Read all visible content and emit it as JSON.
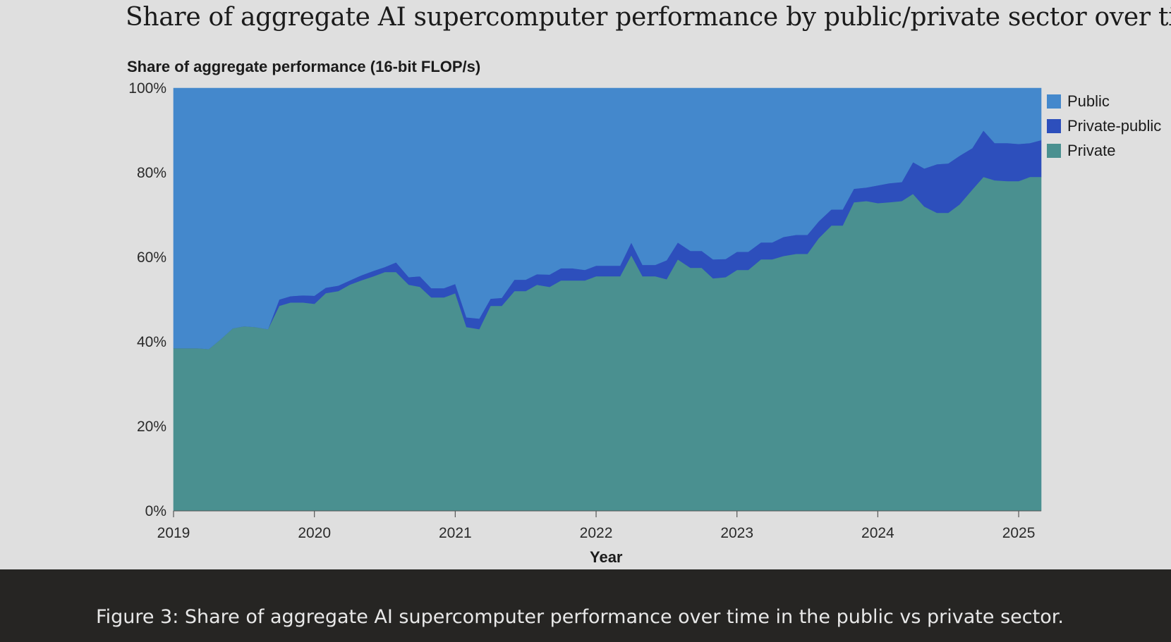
{
  "title": "Share of aggregate AI supercomputer performance by public/private sector over time",
  "caption": "Figure 3: Share of aggregate AI supercomputer performance over time in the public vs private sector.",
  "chart_data": {
    "type": "area",
    "stacked": true,
    "normalized": true,
    "title": "Share of aggregate AI supercomputer performance by public/private sector over time",
    "ylabel": "Share of aggregate performance (16-bit FLOP/s)",
    "xlabel": "Year",
    "xlim": [
      2019.0,
      2025.16
    ],
    "ylim": [
      0,
      100
    ],
    "x_ticks": [
      "2019",
      "2020",
      "2021",
      "2022",
      "2023",
      "2024",
      "2025"
    ],
    "y_ticks": [
      "0%",
      "20%",
      "40%",
      "60%",
      "80%",
      "100%"
    ],
    "legend_position": "right-top",
    "colors": {
      "Public": "#4488cc",
      "Private-public": "#2d4fbc",
      "Private": "#4a9090"
    },
    "x": [
      2019.0,
      2019.17,
      2019.25,
      2019.33,
      2019.42,
      2019.5,
      2019.58,
      2019.67,
      2019.75,
      2019.83,
      2019.92,
      2020.0,
      2020.08,
      2020.17,
      2020.25,
      2020.33,
      2020.42,
      2020.5,
      2020.58,
      2020.67,
      2020.75,
      2020.83,
      2020.92,
      2021.0,
      2021.08,
      2021.17,
      2021.25,
      2021.33,
      2021.42,
      2021.5,
      2021.58,
      2021.67,
      2021.75,
      2021.83,
      2021.92,
      2022.0,
      2022.08,
      2022.17,
      2022.25,
      2022.33,
      2022.42,
      2022.5,
      2022.58,
      2022.67,
      2022.75,
      2022.83,
      2022.92,
      2023.0,
      2023.08,
      2023.17,
      2023.25,
      2023.33,
      2023.42,
      2023.5,
      2023.58,
      2023.67,
      2023.75,
      2023.83,
      2023.92,
      2024.0,
      2024.08,
      2024.17,
      2024.25,
      2024.33,
      2024.42,
      2024.5,
      2024.58,
      2024.67,
      2024.75,
      2024.83,
      2024.92,
      2025.0,
      2025.08,
      2025.16
    ],
    "series": [
      {
        "name": "Private",
        "values": [
          38.5,
          38.5,
          38.3,
          40.5,
          43.2,
          43.7,
          43.5,
          43.0,
          48.5,
          49.3,
          49.3,
          49.0,
          51.5,
          52.0,
          53.5,
          54.5,
          55.5,
          56.5,
          56.5,
          53.5,
          53.0,
          50.5,
          50.5,
          51.5,
          43.5,
          43.0,
          48.5,
          48.5,
          52.0,
          52.0,
          53.5,
          53.0,
          54.5,
          54.5,
          54.5,
          55.5,
          55.5,
          55.5,
          60.5,
          55.5,
          55.5,
          54.8,
          59.5,
          57.5,
          57.5,
          55.0,
          55.3,
          57.0,
          57.0,
          59.5,
          59.5,
          60.3,
          60.8,
          60.8,
          64.5,
          67.5,
          67.5,
          73.0,
          73.3,
          72.8,
          73.0,
          73.3,
          75.0,
          72.0,
          70.5,
          70.5,
          72.5,
          76.0,
          79.0,
          78.2,
          78.0,
          78.0,
          79.0,
          79.0
        ]
      },
      {
        "name": "Private-public",
        "values": [
          0,
          0,
          0,
          0,
          0,
          0,
          0,
          0,
          1.5,
          1.5,
          1.7,
          1.9,
          1.3,
          1.3,
          1.0,
          1.2,
          1.3,
          1.2,
          2.3,
          1.8,
          2.5,
          2.2,
          2.2,
          2.2,
          2.3,
          2.5,
          1.7,
          1.9,
          2.7,
          2.7,
          2.5,
          2.9,
          2.9,
          2.9,
          2.5,
          2.5,
          2.5,
          2.5,
          3.0,
          2.7,
          2.7,
          4.5,
          4.0,
          4.0,
          4.0,
          4.5,
          4.3,
          4.3,
          4.3,
          4.0,
          4.0,
          4.5,
          4.5,
          4.5,
          4.0,
          3.8,
          3.8,
          3.2,
          3.2,
          4.2,
          4.5,
          4.5,
          7.5,
          9.0,
          11.5,
          11.7,
          11.5,
          9.8,
          11.0,
          8.8,
          9.0,
          8.8,
          8.0,
          8.7
        ]
      },
      {
        "name": "Public",
        "values": [
          61.5,
          61.5,
          61.7,
          59.5,
          56.8,
          56.3,
          56.5,
          57.0,
          50.0,
          49.2,
          49.0,
          49.1,
          47.2,
          46.7,
          45.5,
          44.3,
          43.2,
          42.3,
          41.2,
          44.7,
          44.5,
          47.3,
          47.3,
          46.3,
          54.2,
          54.5,
          49.8,
          49.6,
          45.3,
          45.3,
          44.0,
          44.1,
          42.6,
          42.6,
          43.0,
          42.0,
          42.0,
          42.0,
          36.5,
          41.8,
          41.8,
          40.7,
          36.5,
          38.5,
          38.5,
          40.5,
          40.4,
          38.7,
          38.7,
          36.5,
          36.5,
          35.2,
          34.7,
          34.7,
          31.5,
          28.7,
          28.7,
          23.8,
          23.5,
          23.0,
          22.5,
          22.2,
          17.5,
          19.0,
          18.0,
          17.8,
          16.0,
          14.2,
          10.0,
          13.0,
          13.0,
          13.2,
          13.0,
          12.3
        ]
      }
    ]
  }
}
